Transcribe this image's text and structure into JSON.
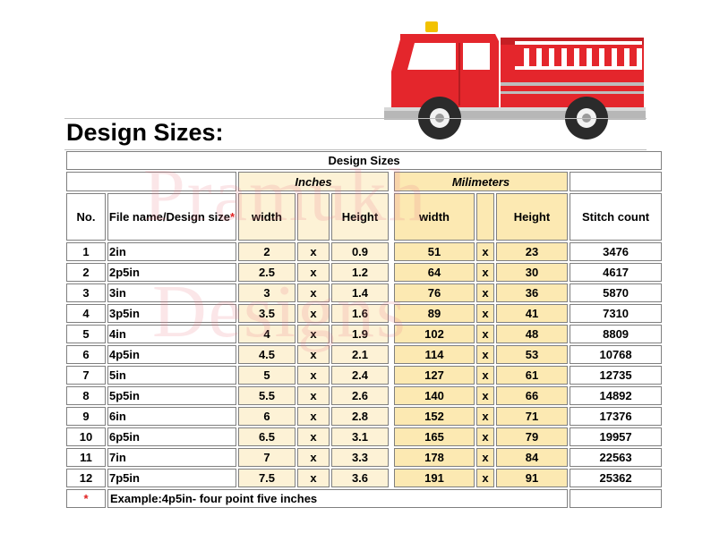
{
  "heading": "Design Sizes:",
  "table": {
    "title": "Design Sizes",
    "group_inches": "Inches",
    "group_mm": "Milimeters",
    "col_no": "No.",
    "col_file": "File name/Design size",
    "col_file_star": "*",
    "col_width": "width",
    "col_height": "Height",
    "col_stitch": "Stitch count",
    "times": "x",
    "rows": [
      {
        "no": "1",
        "file": "2in",
        "in_w": "2",
        "in_h": "0.9",
        "mm_w": "51",
        "mm_h": "23",
        "stitch": "3476"
      },
      {
        "no": "2",
        "file": "2p5in",
        "in_w": "2.5",
        "in_h": "1.2",
        "mm_w": "64",
        "mm_h": "30",
        "stitch": "4617"
      },
      {
        "no": "3",
        "file": "3in",
        "in_w": "3",
        "in_h": "1.4",
        "mm_w": "76",
        "mm_h": "36",
        "stitch": "5870"
      },
      {
        "no": "4",
        "file": "3p5in",
        "in_w": "3.5",
        "in_h": "1.6",
        "mm_w": "89",
        "mm_h": "41",
        "stitch": "7310"
      },
      {
        "no": "5",
        "file": "4in",
        "in_w": "4",
        "in_h": "1.9",
        "mm_w": "102",
        "mm_h": "48",
        "stitch": "8809"
      },
      {
        "no": "6",
        "file": "4p5in",
        "in_w": "4.5",
        "in_h": "2.1",
        "mm_w": "114",
        "mm_h": "53",
        "stitch": "10768"
      },
      {
        "no": "7",
        "file": "5in",
        "in_w": "5",
        "in_h": "2.4",
        "mm_w": "127",
        "mm_h": "61",
        "stitch": "12735"
      },
      {
        "no": "8",
        "file": "5p5in",
        "in_w": "5.5",
        "in_h": "2.6",
        "mm_w": "140",
        "mm_h": "66",
        "stitch": "14892"
      },
      {
        "no": "9",
        "file": "6in",
        "in_w": "6",
        "in_h": "2.8",
        "mm_w": "152",
        "mm_h": "71",
        "stitch": "17376"
      },
      {
        "no": "10",
        "file": "6p5in",
        "in_w": "6.5",
        "in_h": "3.1",
        "mm_w": "165",
        "mm_h": "79",
        "stitch": "19957"
      },
      {
        "no": "11",
        "file": "7in",
        "in_w": "7",
        "in_h": "3.3",
        "mm_w": "178",
        "mm_h": "84",
        "stitch": "22563"
      },
      {
        "no": "12",
        "file": "7p5in",
        "in_w": "7.5",
        "in_h": "3.6",
        "mm_w": "191",
        "mm_h": "91",
        "stitch": "25362"
      }
    ],
    "footnote_star": "*",
    "footnote": "Example:4p5in- four point five inches"
  },
  "watermark": {
    "line1": "Pramukh",
    "line2": "Designs"
  },
  "colors": {
    "inches_fill": "#fdf2d6",
    "mm_fill": "#fce9b2",
    "border": "#7f7f7f",
    "star": "#e02020",
    "truck_red": "#e4262c"
  },
  "illustration": "fire-truck-embroidery"
}
